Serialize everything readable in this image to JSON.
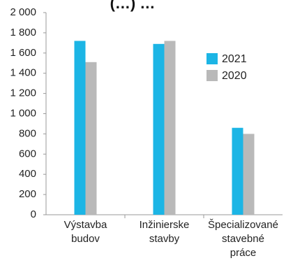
{
  "chart_data": {
    "type": "bar",
    "title_fragment": "(…) …",
    "categories": [
      [
        "Výstavba",
        "budov"
      ],
      [
        "Inžinierske",
        "stavby"
      ],
      [
        "Špecializované",
        "stavebné",
        "práce"
      ]
    ],
    "series": [
      {
        "name": "2021",
        "color": "#1cb5e5",
        "values": [
          1720,
          1690,
          860
        ]
      },
      {
        "name": "2020",
        "color": "#b9b9b9",
        "values": [
          1510,
          1720,
          800
        ]
      }
    ],
    "y_ticks": [
      "0",
      "200",
      "400",
      "600",
      "800",
      "1 000",
      "1 200",
      "1 400",
      "1 600",
      "1 800",
      "2 000"
    ],
    "ylim": [
      0,
      2000
    ],
    "grid": false,
    "legend_position": "right"
  }
}
